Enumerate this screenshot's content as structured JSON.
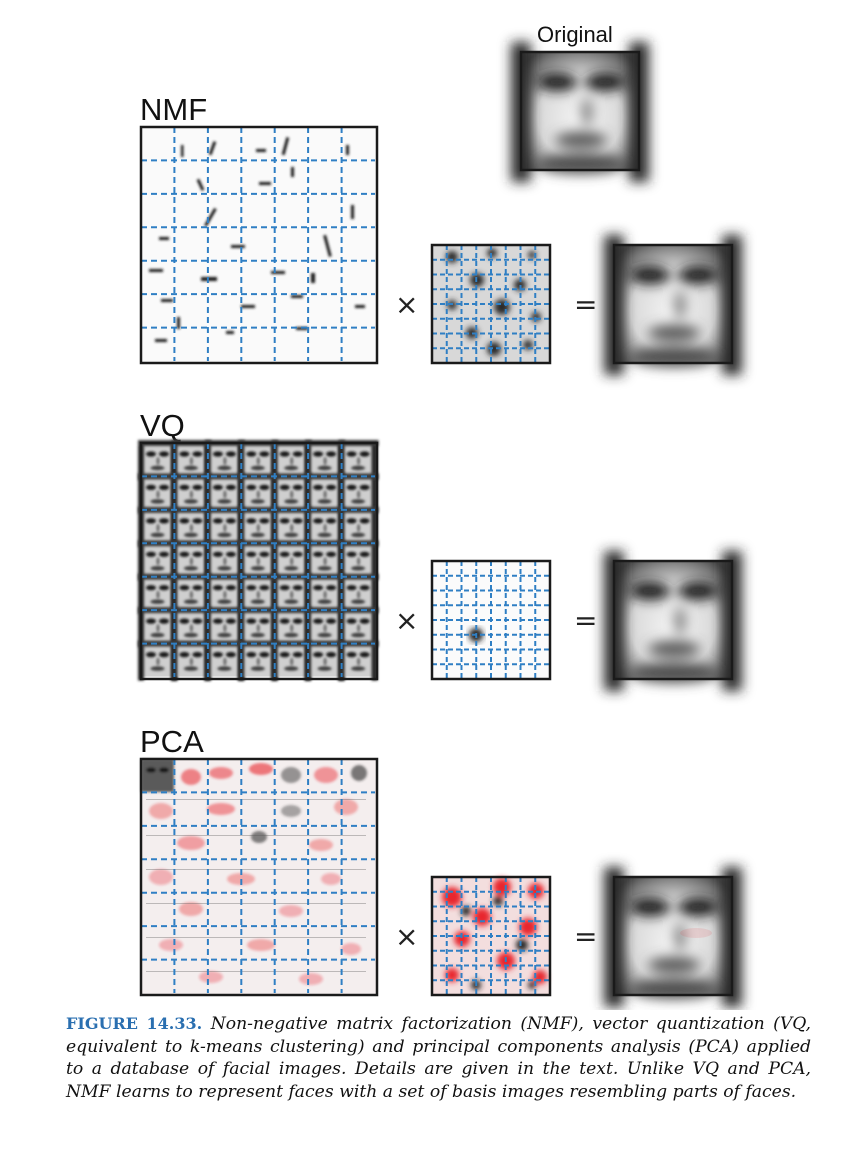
{
  "figure": {
    "original_label": "Original",
    "panels": [
      {
        "id": "nmf",
        "label": "NMF",
        "times": "×",
        "equals": "="
      },
      {
        "id": "vq",
        "label": "VQ",
        "times": "×",
        "equals": "="
      },
      {
        "id": "pca",
        "label": "PCA",
        "times": "×",
        "equals": "="
      }
    ]
  },
  "caption": {
    "number": "FIGURE 14.33.",
    "text": "Non-negative matrix factorization (NMF), vector quantization (VQ, equivalent to k-means clustering) and principal components analysis (PCA) applied to a database of facial images. Details are given in the text. Unlike VQ and PCA, NMF learns to represent faces with a set of basis images resembling parts of faces."
  },
  "colors": {
    "grid_dash": "#2f7fc4",
    "frame": "#1a1a1a",
    "pca_negative": "#e8262e",
    "caption_number": "#2a6fb0"
  }
}
